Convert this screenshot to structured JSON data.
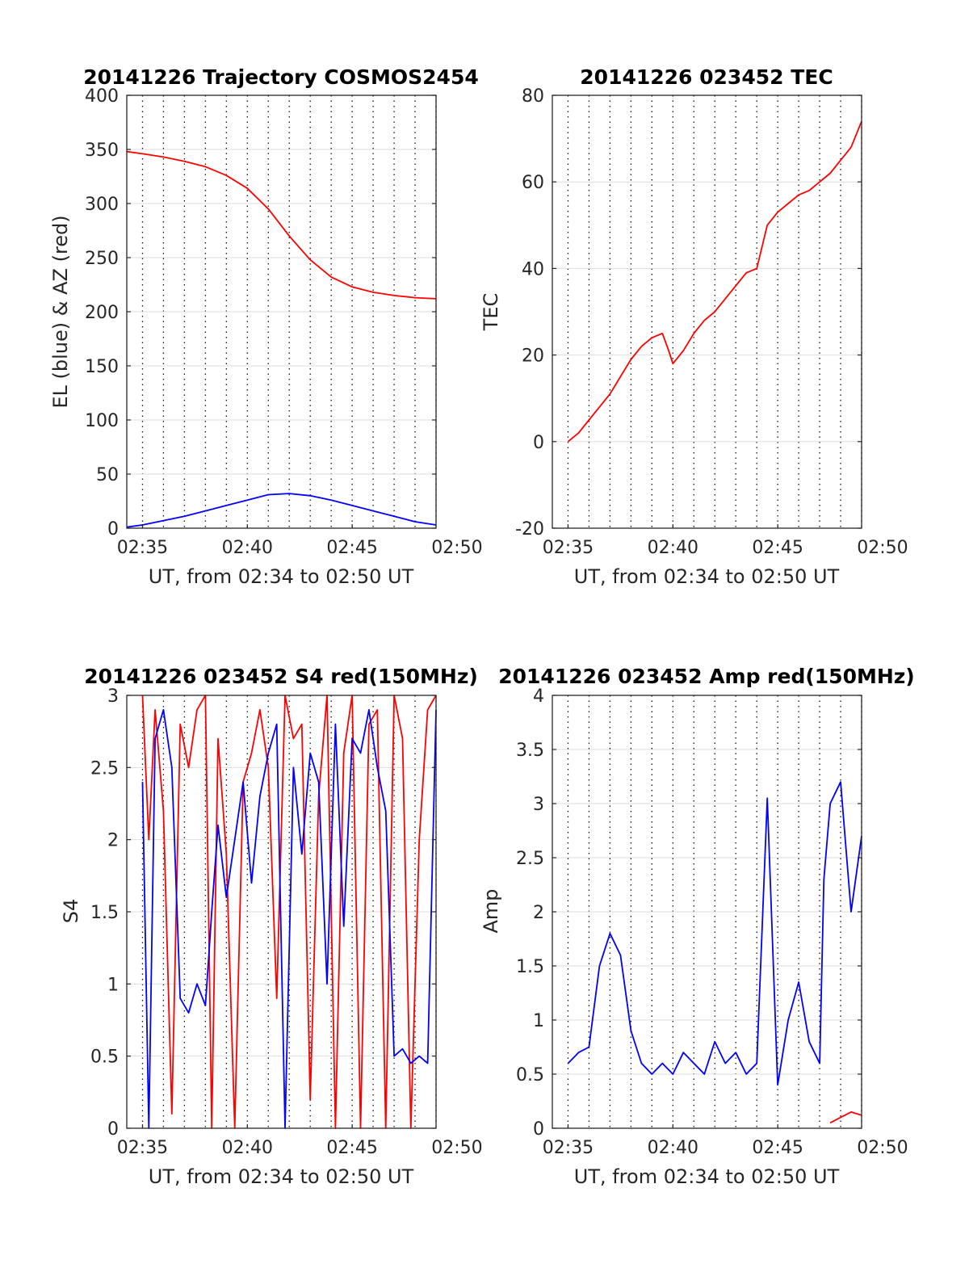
{
  "chart_data": [
    {
      "type": "line",
      "title": "20141226 Trajectory COSMOS2454",
      "xlabel": "UT, from 02:34 to 02:50 UT",
      "ylabel": "EL (blue) & AZ (red)",
      "xlim": [
        2.25,
        17.0
      ],
      "ylim": [
        0,
        400
      ],
      "xticks": [
        {
          "v": 3,
          "label": "02:35"
        },
        {
          "v": 8,
          "label": "02:40"
        },
        {
          "v": 13,
          "label": "02:45"
        },
        {
          "v": 18,
          "label": "02:50"
        }
      ],
      "yticks": [
        0,
        50,
        100,
        150,
        200,
        250,
        300,
        350,
        400
      ],
      "grid": true,
      "series": [
        {
          "color": "#ff0000",
          "x": [
            2.25,
            3,
            4,
            5,
            6,
            7,
            8,
            9,
            10,
            11,
            12,
            13,
            14,
            15,
            16,
            17
          ],
          "values": [
            348,
            346,
            343,
            339,
            334,
            326,
            314,
            295,
            270,
            248,
            232,
            223,
            218,
            215,
            213,
            212
          ]
        },
        {
          "color": "#0000ff",
          "x": [
            2.25,
            3,
            4,
            5,
            6,
            7,
            8,
            9,
            10,
            11,
            12,
            13,
            14,
            15,
            16,
            17
          ],
          "values": [
            1,
            3,
            7,
            11,
            16,
            21,
            26,
            31,
            32,
            30,
            26,
            21,
            16,
            11,
            6,
            3
          ]
        }
      ]
    },
    {
      "type": "line",
      "title": "20141226 023452 TEC",
      "xlabel": "UT, from 02:34 to 02:50 UT",
      "ylabel": "TEC",
      "xlim": [
        2.25,
        17.0
      ],
      "ylim": [
        -20,
        80
      ],
      "xticks": [
        {
          "v": 3,
          "label": "02:35"
        },
        {
          "v": 8,
          "label": "02:40"
        },
        {
          "v": 13,
          "label": "02:45"
        },
        {
          "v": 18,
          "label": "02:50"
        }
      ],
      "yticks": [
        -20,
        0,
        20,
        40,
        60,
        80
      ],
      "grid": true,
      "series": [
        {
          "color": "#ff0000",
          "x": [
            3.0,
            3.5,
            4.0,
            4.5,
            5.0,
            5.5,
            6.0,
            6.5,
            7.0,
            7.5,
            7.8,
            8.0,
            8.5,
            9.0,
            9.5,
            10.0,
            10.5,
            11.0,
            11.5,
            12.0,
            12.5,
            13.0,
            13.5,
            14.0,
            14.5,
            15.0,
            15.5,
            16.0,
            16.5,
            17.0
          ],
          "values": [
            0,
            2,
            5,
            8,
            11,
            15,
            19,
            22,
            24,
            25,
            21,
            18,
            21,
            25,
            28,
            30,
            33,
            36,
            39,
            40,
            50,
            53,
            55,
            57,
            58,
            60,
            62,
            65,
            68,
            74
          ]
        }
      ]
    },
    {
      "type": "line",
      "title": "20141226 023452 S4 red(150MHz)",
      "xlabel": "UT, from 02:34 to 02:50 UT",
      "ylabel": "S4",
      "xlim": [
        2.25,
        17.0
      ],
      "ylim": [
        0,
        3
      ],
      "xticks": [
        {
          "v": 3,
          "label": "02:35"
        },
        {
          "v": 8,
          "label": "02:40"
        },
        {
          "v": 13,
          "label": "02:45"
        },
        {
          "v": 18,
          "label": "02:50"
        }
      ],
      "yticks": [
        0,
        0.5,
        1,
        1.5,
        2,
        2.5,
        3
      ],
      "grid": true,
      "series": [
        {
          "color": "#ff0000",
          "x": [
            3.0,
            3.3,
            3.6,
            4.0,
            4.4,
            4.8,
            5.2,
            5.6,
            6.0,
            6.3,
            6.6,
            7.0,
            7.4,
            7.8,
            8.2,
            8.6,
            9.0,
            9.4,
            9.8,
            10.2,
            10.6,
            11.0,
            11.4,
            11.8,
            12.2,
            12.6,
            13.0,
            13.4,
            13.8,
            14.2,
            14.6,
            15.0,
            15.4,
            15.8,
            16.2,
            16.6,
            17.0
          ],
          "values": [
            3,
            2.0,
            2.9,
            2.2,
            0.1,
            2.8,
            2.5,
            2.9,
            3,
            0.0,
            2.7,
            1.9,
            0.0,
            2.4,
            2.6,
            2.9,
            2.5,
            0.9,
            3,
            2.7,
            2.8,
            0.2,
            2.3,
            3,
            0.0,
            2.6,
            3,
            0.0,
            2.8,
            2.9,
            0.0,
            3,
            2.7,
            0.0,
            2.0,
            2.9,
            3
          ]
        },
        {
          "color": "#0000ff",
          "x": [
            3.0,
            3.3,
            3.6,
            4.0,
            4.4,
            4.8,
            5.2,
            5.6,
            6.0,
            6.3,
            6.6,
            7.0,
            7.4,
            7.8,
            8.2,
            8.6,
            9.0,
            9.4,
            9.8,
            10.2,
            10.6,
            11.0,
            11.4,
            11.8,
            12.2,
            12.6,
            13.0,
            13.4,
            13.8,
            14.2,
            14.6,
            15.0,
            15.4,
            15.8,
            16.2,
            16.6,
            17.0
          ],
          "values": [
            2.4,
            0.0,
            2.7,
            2.9,
            2.5,
            0.9,
            0.8,
            1.0,
            0.85,
            1.5,
            2.1,
            1.6,
            2.0,
            2.4,
            1.7,
            2.3,
            2.6,
            2.8,
            0.0,
            2.5,
            1.9,
            2.6,
            2.4,
            1.0,
            2.8,
            1.4,
            2.7,
            2.6,
            2.9,
            2.5,
            2.2,
            0.5,
            0.55,
            0.45,
            0.5,
            0.45,
            2.9
          ]
        }
      ]
    },
    {
      "type": "line",
      "title": "20141226 023452 Amp red(150MHz)",
      "xlabel": "UT, from 02:34 to 02:50 UT",
      "ylabel": "Amp",
      "xlim": [
        2.25,
        17.0
      ],
      "ylim": [
        0,
        4
      ],
      "xticks": [
        {
          "v": 3,
          "label": "02:35"
        },
        {
          "v": 8,
          "label": "02:40"
        },
        {
          "v": 13,
          "label": "02:45"
        },
        {
          "v": 18,
          "label": "02:50"
        }
      ],
      "yticks": [
        0,
        0.5,
        1,
        1.5,
        2,
        2.5,
        3,
        3.5,
        4
      ],
      "grid": true,
      "series": [
        {
          "color": "#ff0000",
          "x": [
            15.5,
            16.0,
            16.5,
            17.0
          ],
          "values": [
            0.05,
            0.1,
            0.15,
            0.12
          ]
        },
        {
          "color": "#0000ff",
          "x": [
            3.0,
            3.5,
            4.0,
            4.5,
            5.0,
            5.5,
            6.0,
            6.5,
            7.0,
            7.5,
            8.0,
            8.5,
            9.0,
            9.5,
            10.0,
            10.5,
            11.0,
            11.5,
            12.0,
            12.5,
            13.0,
            13.5,
            14.0,
            14.5,
            15.0,
            15.2,
            15.5,
            16.0,
            16.5,
            17.0
          ],
          "values": [
            0.6,
            0.7,
            0.75,
            1.5,
            1.8,
            1.6,
            0.9,
            0.6,
            0.5,
            0.6,
            0.5,
            0.7,
            0.6,
            0.5,
            0.8,
            0.6,
            0.7,
            0.5,
            0.6,
            3.05,
            0.4,
            1.0,
            1.35,
            0.8,
            0.6,
            2.3,
            3.0,
            3.2,
            2.0,
            2.7
          ]
        }
      ]
    }
  ]
}
